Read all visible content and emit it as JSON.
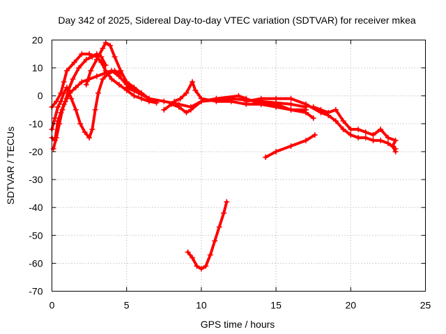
{
  "chart_data": {
    "type": "scatter",
    "title": "Day 342 of 2025, Sidereal Day-to-day VTEC variation (SDTVAR) for receiver mkea",
    "xlabel": "GPS time / hours",
    "ylabel": "SDTVAR / TECUs",
    "xlim": [
      0,
      25
    ],
    "ylim": [
      -70,
      20
    ],
    "xticks": [
      "0",
      "5",
      "10",
      "15",
      "20",
      "25"
    ],
    "yticks": [
      "20",
      "10",
      "0",
      "-10",
      "-20",
      "-30",
      "-40",
      "-50",
      "-60",
      "-70"
    ],
    "grid": true,
    "marker": "plus",
    "color": "#ff0000",
    "series": [
      {
        "name": "track-1",
        "points": [
          [
            0.0,
            -4
          ],
          [
            0.3,
            -2
          ],
          [
            0.6,
            1
          ],
          [
            0.8,
            5
          ],
          [
            1.0,
            9
          ],
          [
            1.5,
            12
          ],
          [
            2.0,
            15
          ],
          [
            2.5,
            15
          ],
          [
            3.0,
            14
          ],
          [
            3.3,
            12
          ],
          [
            3.6,
            9
          ],
          [
            4.0,
            6
          ],
          [
            4.5,
            4
          ],
          [
            5.0,
            2
          ],
          [
            5.5,
            0
          ],
          [
            6.0,
            -1
          ],
          [
            6.5,
            -2
          ],
          [
            7.0,
            -2.5
          ]
        ]
      },
      {
        "name": "track-2",
        "points": [
          [
            0.1,
            -19
          ],
          [
            0.3,
            -15
          ],
          [
            0.5,
            -10
          ],
          [
            0.7,
            -5
          ],
          [
            0.9,
            -2
          ],
          [
            1.1,
            2
          ],
          [
            1.4,
            6
          ],
          [
            1.8,
            10
          ],
          [
            2.3,
            13
          ],
          [
            2.7,
            14
          ],
          [
            3.0,
            15
          ],
          [
            3.3,
            14
          ],
          [
            3.6,
            11
          ]
        ]
      },
      {
        "name": "track-3",
        "points": [
          [
            0.0,
            -12
          ],
          [
            0.2,
            -8
          ],
          [
            0.4,
            -4
          ],
          [
            0.6,
            -2
          ],
          [
            0.8,
            1
          ],
          [
            1.0,
            3
          ],
          [
            1.3,
            -1
          ],
          [
            1.6,
            -5
          ],
          [
            1.9,
            -10
          ],
          [
            2.2,
            -13
          ],
          [
            2.5,
            -15
          ],
          [
            2.7,
            -12
          ],
          [
            2.9,
            -5
          ],
          [
            3.1,
            1
          ],
          [
            3.4,
            6
          ],
          [
            3.8,
            8
          ],
          [
            4.2,
            9
          ],
          [
            4.6,
            8
          ]
        ]
      },
      {
        "name": "track-4",
        "points": [
          [
            2.3,
            4
          ],
          [
            2.6,
            9
          ],
          [
            3.0,
            13
          ],
          [
            3.4,
            17
          ],
          [
            3.6,
            19
          ],
          [
            3.9,
            18
          ],
          [
            4.2,
            14
          ],
          [
            4.6,
            9
          ],
          [
            5.0,
            5
          ],
          [
            5.5,
            3
          ],
          [
            6.0,
            1
          ],
          [
            6.5,
            -1
          ],
          [
            7.0,
            -2
          ]
        ]
      },
      {
        "name": "track-5",
        "points": [
          [
            0.0,
            -15
          ],
          [
            0.2,
            -16
          ],
          [
            0.4,
            -9
          ],
          [
            0.6,
            -6
          ],
          [
            0.8,
            -3
          ],
          [
            1.0,
            -1
          ],
          [
            1.2,
            1
          ],
          [
            1.6,
            3
          ],
          [
            2.0,
            5
          ],
          [
            2.5,
            6
          ],
          [
            3.0,
            7
          ],
          [
            3.5,
            8
          ],
          [
            4.0,
            9
          ],
          [
            4.5,
            7
          ],
          [
            5.0,
            4
          ],
          [
            5.5,
            2
          ]
        ]
      },
      {
        "name": "track-6",
        "points": [
          [
            5.0,
            3
          ],
          [
            5.8,
            1
          ],
          [
            6.5,
            -1
          ],
          [
            7.5,
            -2
          ],
          [
            8.5,
            -3
          ],
          [
            9.3,
            -4
          ],
          [
            10,
            -2
          ],
          [
            11,
            -1.5
          ],
          [
            12,
            -1
          ],
          [
            13,
            -1.5
          ],
          [
            14,
            -2
          ],
          [
            15,
            -2.5
          ],
          [
            16,
            -3
          ],
          [
            17,
            -4
          ]
        ]
      },
      {
        "name": "track-7",
        "points": [
          [
            7.5,
            -5
          ],
          [
            8.0,
            -3
          ],
          [
            8.5,
            -4
          ],
          [
            9.0,
            -6
          ],
          [
            9.3,
            -5
          ],
          [
            10.0,
            -2
          ],
          [
            11.0,
            -1
          ],
          [
            12.5,
            0
          ],
          [
            13.0,
            -1
          ],
          [
            14.0,
            -3
          ],
          [
            15.0,
            -3
          ],
          [
            16.0,
            -5
          ],
          [
            17.0,
            -6
          ],
          [
            17.5,
            -8
          ]
        ]
      },
      {
        "name": "track-8",
        "points": [
          [
            8.2,
            -2
          ],
          [
            8.6,
            -1
          ],
          [
            9.0,
            1
          ],
          [
            9.4,
            5
          ],
          [
            9.6,
            2
          ],
          [
            10.0,
            -1
          ],
          [
            11.0,
            -2
          ],
          [
            12.0,
            -2
          ],
          [
            13.0,
            -3
          ],
          [
            14.0,
            -3
          ],
          [
            15.0,
            -4
          ],
          [
            16.0,
            -5
          ],
          [
            17.0,
            -5
          ]
        ]
      },
      {
        "name": "track-9",
        "points": [
          [
            13,
            -2
          ],
          [
            14,
            -1
          ],
          [
            15,
            -1
          ],
          [
            16,
            -1
          ],
          [
            17,
            -3
          ],
          [
            18,
            -6
          ],
          [
            18.5,
            -7
          ],
          [
            19,
            -9
          ],
          [
            19.5,
            -12
          ],
          [
            20,
            -14
          ],
          [
            20.5,
            -15
          ],
          [
            21,
            -15
          ],
          [
            21.5,
            -16
          ],
          [
            22,
            -16
          ],
          [
            22.5,
            -17
          ],
          [
            23,
            -19
          ]
        ]
      },
      {
        "name": "track-10",
        "points": [
          [
            17.5,
            -4
          ],
          [
            18,
            -5
          ],
          [
            18.5,
            -6
          ],
          [
            19,
            -5
          ],
          [
            19.5,
            -9
          ],
          [
            20,
            -12
          ],
          [
            20.5,
            -12
          ],
          [
            21,
            -13
          ],
          [
            21.5,
            -14
          ],
          [
            22,
            -12
          ],
          [
            22.5,
            -15
          ],
          [
            23,
            -16
          ],
          [
            22.8,
            -18
          ],
          [
            23,
            -20
          ]
        ]
      },
      {
        "name": "track-11",
        "points": [
          [
            14.3,
            -22
          ],
          [
            15,
            -20
          ],
          [
            16,
            -18
          ],
          [
            17,
            -16
          ],
          [
            17.6,
            -14
          ]
        ]
      },
      {
        "name": "track-12",
        "points": [
          [
            9.1,
            -56
          ],
          [
            9.4,
            -58
          ],
          [
            9.7,
            -61
          ],
          [
            10.0,
            -62
          ],
          [
            10.3,
            -61
          ],
          [
            10.6,
            -57
          ],
          [
            10.9,
            -52
          ],
          [
            11.2,
            -47
          ],
          [
            11.5,
            -42
          ],
          [
            11.7,
            -38
          ]
        ]
      }
    ]
  }
}
